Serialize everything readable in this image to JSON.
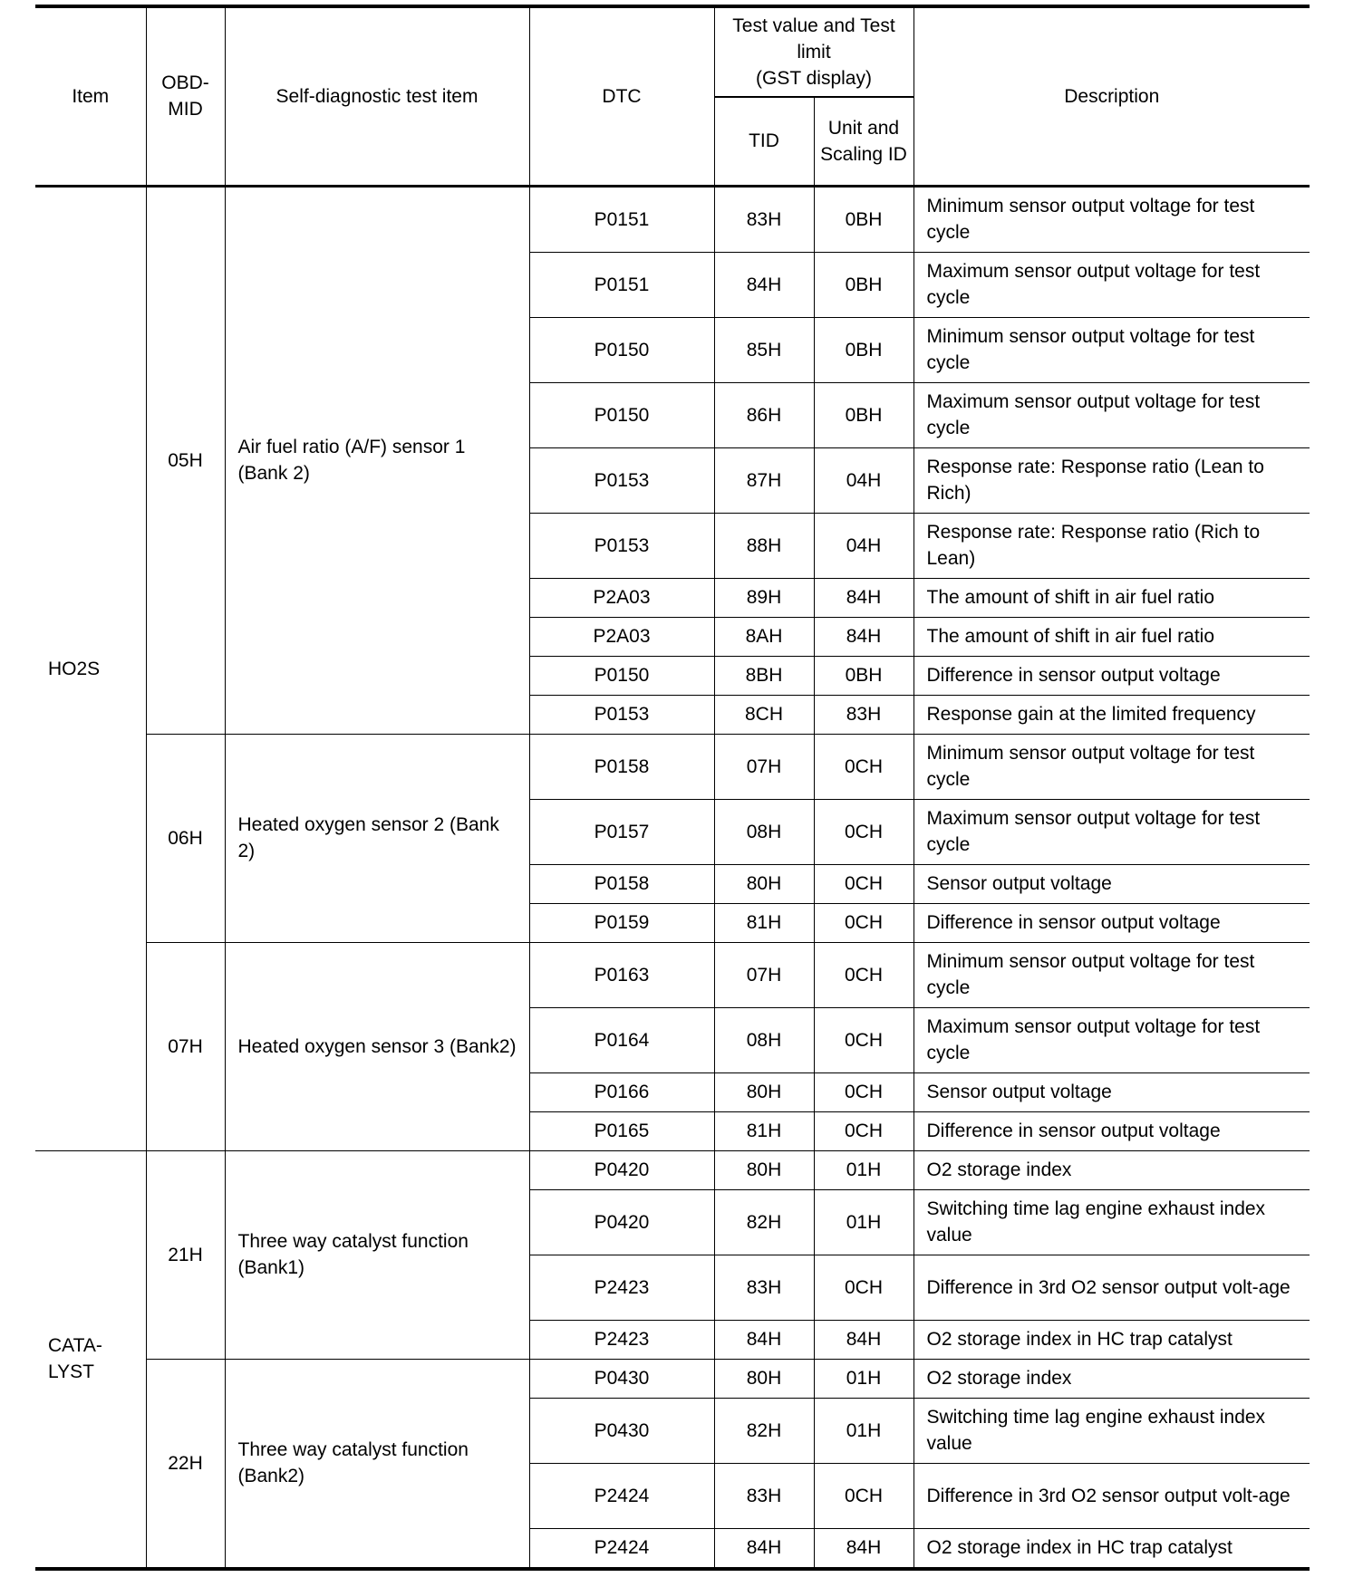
{
  "headers": {
    "item": "Item",
    "obd_mid": "OBD-\nMID",
    "test_item": "Self-diagnostic test item",
    "dtc": "DTC",
    "test_value_group": "Test value and Test limit\n(GST display)",
    "tid": "TID",
    "unit_scaling": "Unit and Scaling ID",
    "description": "Description"
  },
  "groups": [
    {
      "item": "HO2S",
      "mids": [
        {
          "mid": "05H",
          "test_item": "Air fuel ratio (A/F) sensor 1 (Bank 2)",
          "rows": [
            {
              "dtc": "P0151",
              "tid": "83H",
              "unit": "0BH",
              "desc": "Minimum sensor output voltage for test cycle"
            },
            {
              "dtc": "P0151",
              "tid": "84H",
              "unit": "0BH",
              "desc": "Maximum sensor output voltage for test cycle"
            },
            {
              "dtc": "P0150",
              "tid": "85H",
              "unit": "0BH",
              "desc": "Minimum sensor output voltage for test cycle"
            },
            {
              "dtc": "P0150",
              "tid": "86H",
              "unit": "0BH",
              "desc": "Maximum sensor output voltage for test cycle"
            },
            {
              "dtc": "P0153",
              "tid": "87H",
              "unit": "04H",
              "desc": "Response rate: Response ratio (Lean to Rich)"
            },
            {
              "dtc": "P0153",
              "tid": "88H",
              "unit": "04H",
              "desc": "Response rate: Response ratio (Rich to Lean)"
            },
            {
              "dtc": "P2A03",
              "tid": "89H",
              "unit": "84H",
              "desc": "The amount of shift in air fuel ratio"
            },
            {
              "dtc": "P2A03",
              "tid": "8AH",
              "unit": "84H",
              "desc": "The amount of shift in air fuel ratio"
            },
            {
              "dtc": "P0150",
              "tid": "8BH",
              "unit": "0BH",
              "desc": "Difference in sensor output voltage"
            },
            {
              "dtc": "P0153",
              "tid": "8CH",
              "unit": "83H",
              "desc": "Response gain at the limited frequency"
            }
          ]
        },
        {
          "mid": "06H",
          "test_item": "Heated oxygen sensor 2 (Bank 2)",
          "rows": [
            {
              "dtc": "P0158",
              "tid": "07H",
              "unit": "0CH",
              "desc": "Minimum sensor output voltage for test cycle"
            },
            {
              "dtc": "P0157",
              "tid": "08H",
              "unit": "0CH",
              "desc": "Maximum sensor output voltage for test cycle"
            },
            {
              "dtc": "P0158",
              "tid": "80H",
              "unit": "0CH",
              "desc": "Sensor output voltage"
            },
            {
              "dtc": "P0159",
              "tid": "81H",
              "unit": "0CH",
              "desc": "Difference in sensor output voltage"
            }
          ]
        },
        {
          "mid": "07H",
          "test_item": "Heated oxygen sensor 3 (Bank2)",
          "rows": [
            {
              "dtc": "P0163",
              "tid": "07H",
              "unit": "0CH",
              "desc": "Minimum sensor output voltage for test cycle"
            },
            {
              "dtc": "P0164",
              "tid": "08H",
              "unit": "0CH",
              "desc": "Maximum sensor output voltage for test cycle"
            },
            {
              "dtc": "P0166",
              "tid": "80H",
              "unit": "0CH",
              "desc": "Sensor output voltage"
            },
            {
              "dtc": "P0165",
              "tid": "81H",
              "unit": "0CH",
              "desc": "Difference in sensor output voltage"
            }
          ]
        }
      ]
    },
    {
      "item": "CATA-\nLYST",
      "mids": [
        {
          "mid": "21H",
          "test_item": "Three way catalyst function (Bank1)",
          "rows": [
            {
              "dtc": "P0420",
              "tid": "80H",
              "unit": "01H",
              "desc": "O2 storage index"
            },
            {
              "dtc": "P0420",
              "tid": "82H",
              "unit": "01H",
              "desc": "Switching time lag engine exhaust index value"
            },
            {
              "dtc": "P2423",
              "tid": "83H",
              "unit": "0CH",
              "desc": "Difference in 3rd O2 sensor output volt-age"
            },
            {
              "dtc": "P2423",
              "tid": "84H",
              "unit": "84H",
              "desc": "O2 storage index in HC trap catalyst"
            }
          ]
        },
        {
          "mid": "22H",
          "test_item": "Three way catalyst function (Bank2)",
          "rows": [
            {
              "dtc": "P0430",
              "tid": "80H",
              "unit": "01H",
              "desc": "O2 storage index"
            },
            {
              "dtc": "P0430",
              "tid": "82H",
              "unit": "01H",
              "desc": "Switching time lag engine exhaust index value"
            },
            {
              "dtc": "P2424",
              "tid": "83H",
              "unit": "0CH",
              "desc": "Difference in 3rd O2 sensor output volt-age"
            },
            {
              "dtc": "P2424",
              "tid": "84H",
              "unit": "84H",
              "desc": "O2 storage index in HC trap catalyst"
            }
          ]
        }
      ]
    }
  ]
}
